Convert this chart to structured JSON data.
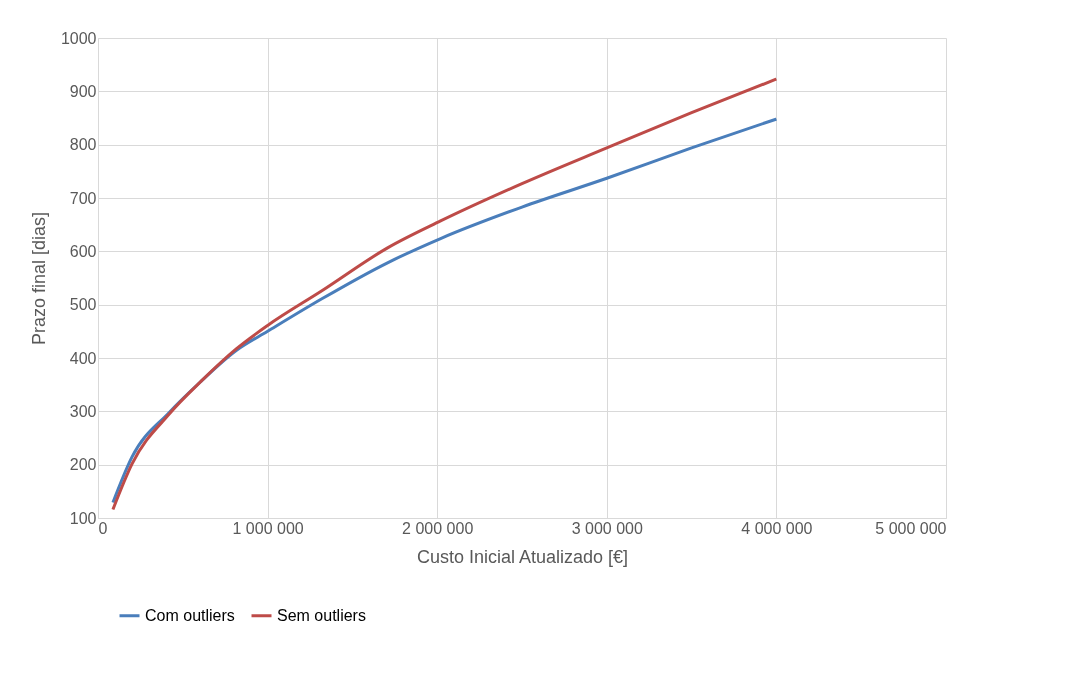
{
  "chart_data": {
    "type": "line",
    "xlabel": "Custo Inicial Atualizado [€]",
    "ylabel": "Prazo final [dias]",
    "xlim": [
      0,
      5000000
    ],
    "ylim": [
      100,
      1000
    ],
    "xticks": [
      0,
      {
        "value": 1000000,
        "label": "1 000 000"
      },
      {
        "value": 2000000,
        "label": "2 000 000"
      },
      {
        "value": 3000000,
        "label": "3 000 000"
      },
      {
        "value": 4000000,
        "label": "4 000 000"
      },
      {
        "value": 5000000,
        "label": "5 000 000"
      }
    ],
    "yticks": [
      100,
      200,
      300,
      400,
      500,
      600,
      700,
      800,
      900,
      1000
    ],
    "grid": true,
    "legend": "bottom",
    "marker": "none",
    "line_style": "solid",
    "series": [
      {
        "name": "Com outliers",
        "color": "#4a7ebb",
        "x": [
          88000,
          200000,
          420000,
          610000,
          815000,
          1000000,
          1320000,
          1710000,
          2020000,
          2500000,
          3000000,
          3500000,
          4000000
        ],
        "values": [
          129,
          214,
          298,
          357,
          414,
          450,
          511,
          579,
          624,
          683,
          737,
          794,
          848
        ]
      },
      {
        "name": "Sem outliers",
        "color": "#be4b48",
        "x": [
          88000,
          200000,
          420000,
          610000,
          815000,
          1000000,
          1320000,
          1710000,
          2020000,
          2500000,
          3000000,
          3500000,
          4000000
        ],
        "values": [
          116,
          201,
          295,
          357,
          417,
          461,
          526,
          607,
          657,
          727,
          794,
          860,
          923
        ]
      }
    ]
  }
}
